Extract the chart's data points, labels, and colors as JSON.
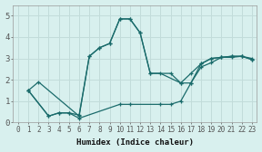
{
  "xlabel": "Humidex (Indice chaleur)",
  "xlim": [
    -0.5,
    23.5
  ],
  "ylim": [
    0,
    5.5
  ],
  "xticks": [
    0,
    1,
    2,
    3,
    4,
    5,
    6,
    7,
    8,
    9,
    10,
    11,
    12,
    13,
    14,
    15,
    16,
    17,
    18,
    19,
    20,
    21,
    22,
    23
  ],
  "yticks": [
    0,
    1,
    2,
    3,
    4,
    5
  ],
  "bg_color": "#d8f0ee",
  "grid_color": "#c2dcda",
  "line_color": "#1a6b6b",
  "series": [
    {
      "x": [
        1,
        2,
        6,
        7,
        8,
        9,
        10,
        11,
        12,
        13,
        15,
        16,
        17,
        18,
        19,
        20,
        21,
        22,
        23
      ],
      "y": [
        1.5,
        1.9,
        0.3,
        3.1,
        3.5,
        3.7,
        4.85,
        4.85,
        4.2,
        2.3,
        2.3,
        1.85,
        1.85,
        2.75,
        3.0,
        3.05,
        3.05,
        3.1,
        3.0
      ]
    },
    {
      "x": [
        1,
        3,
        4,
        5,
        6,
        7,
        8,
        9,
        10,
        11,
        12,
        13,
        14,
        16,
        17,
        18,
        19,
        20,
        21,
        22,
        23
      ],
      "y": [
        1.5,
        0.3,
        0.45,
        0.45,
        0.35,
        3.1,
        3.5,
        3.7,
        4.85,
        4.85,
        4.2,
        2.3,
        2.3,
        1.85,
        2.3,
        2.75,
        3.0,
        3.05,
        3.1,
        3.1,
        2.95
      ]
    },
    {
      "x": [
        1,
        3,
        4,
        5,
        6,
        10,
        11,
        14,
        15,
        16,
        17,
        18,
        19,
        20,
        21,
        22,
        23
      ],
      "y": [
        1.5,
        0.3,
        0.45,
        0.45,
        0.2,
        0.85,
        0.85,
        0.85,
        0.85,
        1.0,
        1.85,
        2.6,
        2.8,
        3.05,
        3.1,
        3.1,
        2.95
      ]
    }
  ]
}
